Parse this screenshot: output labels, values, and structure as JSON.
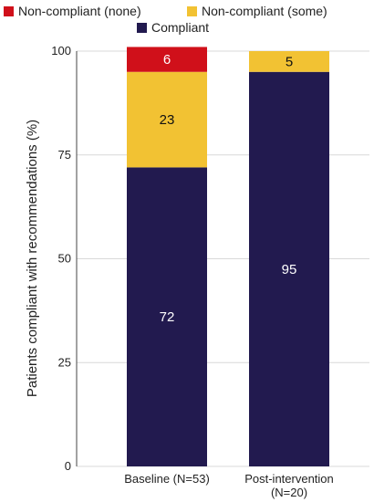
{
  "chart_data": {
    "type": "bar",
    "stacked": true,
    "categories": [
      "Baseline (N=53)",
      "Post-intervention (N=20)"
    ],
    "series": [
      {
        "name": "Compliant",
        "values": [
          72,
          95
        ],
        "color": "#221a4f",
        "label_color": "#ffffff"
      },
      {
        "name": "Non-compliant (some)",
        "values": [
          23,
          5
        ],
        "color": "#f2c233",
        "label_color": "#111111"
      },
      {
        "name": "Non-compliant (none)",
        "values": [
          6,
          0
        ],
        "color": "#d0101a",
        "label_color": "#ffffff"
      }
    ],
    "ylabel": "Patients compliant with recommendations (%)",
    "ylim": [
      0,
      100
    ],
    "yticks": [
      0,
      25,
      50,
      75,
      100
    ],
    "grid": true,
    "legend_placement": "top"
  }
}
